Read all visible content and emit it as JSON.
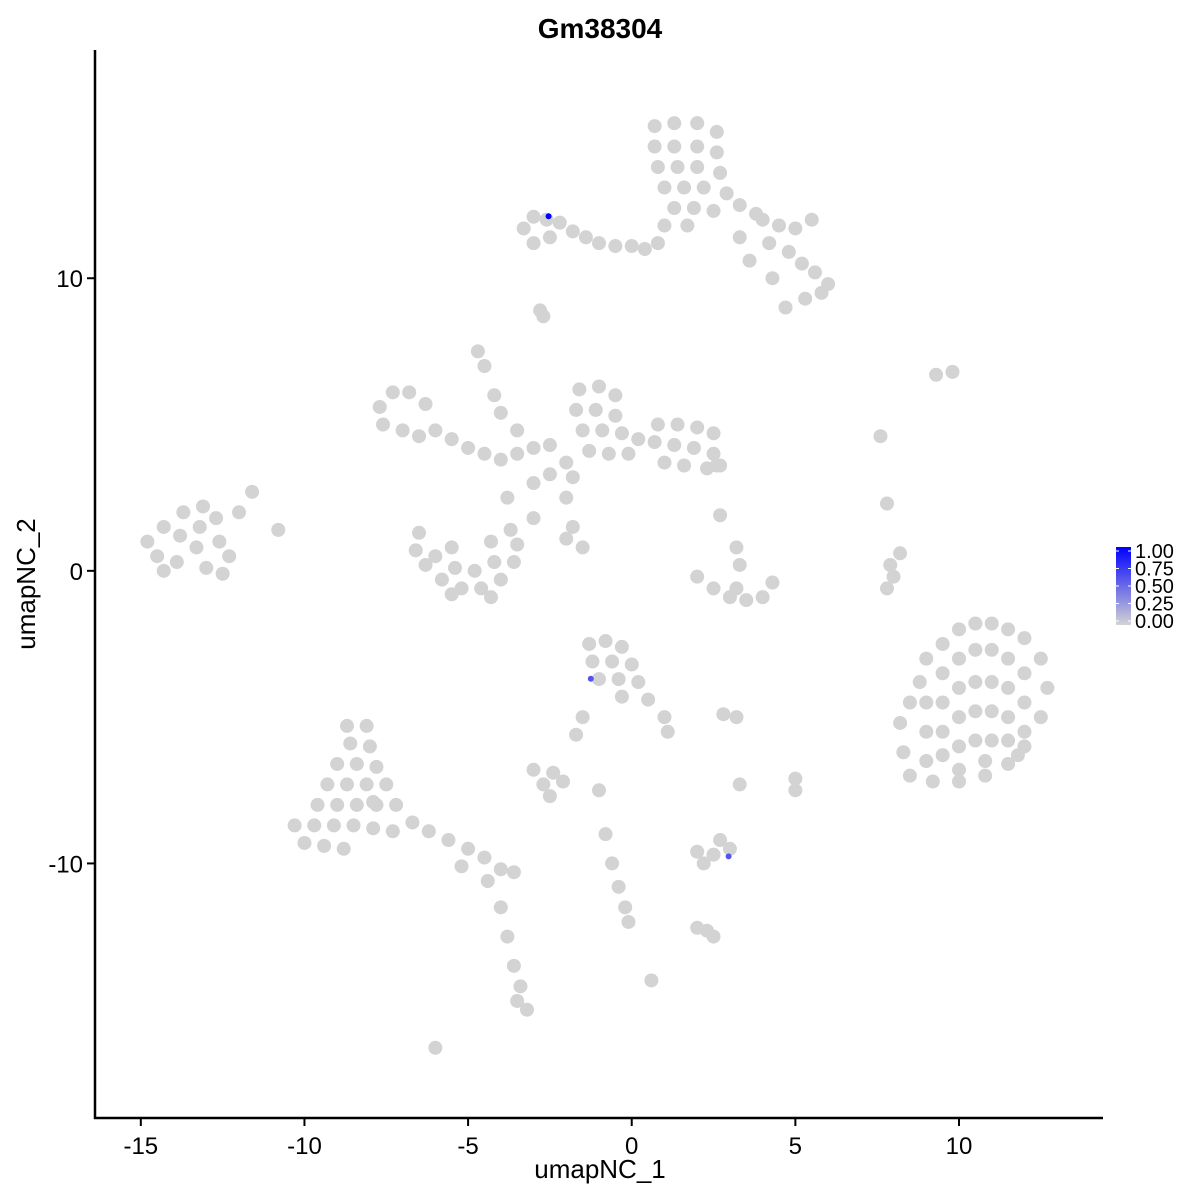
{
  "chart_data": {
    "type": "scatter",
    "title": "Gm38304",
    "xlabel": "umapNC_1",
    "ylabel": "umapNC_2",
    "xlim": [
      -16.4,
      14.4
    ],
    "ylim": [
      -18.7,
      17.8
    ],
    "xticks": [
      -15,
      -10,
      -5,
      0,
      5,
      10
    ],
    "yticks": [
      -10,
      0,
      10
    ],
    "xtick_labels": [
      "-15",
      "-10",
      "-5",
      "0",
      "5",
      "10"
    ],
    "ytick_labels": [
      "-10",
      "0",
      "10"
    ],
    "grid": false,
    "legend": {
      "type": "colorbar",
      "placement": "right",
      "low_color": "#d3d3d3",
      "high_color": "#0000ff",
      "range": [
        0,
        1
      ],
      "labels": [
        "1.00",
        "0.75",
        "0.50",
        "0.25",
        "0.00"
      ]
    },
    "background_points_value": 0,
    "points": [
      [
        9,
        -3
      ],
      [
        9.5,
        -2.5
      ],
      [
        10,
        -2
      ],
      [
        10.5,
        -1.8
      ],
      [
        11,
        -1.8
      ],
      [
        11.5,
        -2
      ],
      [
        12,
        -2.3
      ],
      [
        12.5,
        -3
      ],
      [
        12.7,
        -4
      ],
      [
        12.5,
        -5
      ],
      [
        12,
        -6
      ],
      [
        11.5,
        -6.6
      ],
      [
        10.8,
        -7
      ],
      [
        10,
        -7.2
      ],
      [
        9.2,
        -7.2
      ],
      [
        8.5,
        -7
      ],
      [
        8.3,
        -6.2
      ],
      [
        8.2,
        -5.2
      ],
      [
        8.5,
        -4.5
      ],
      [
        8.8,
        -3.8
      ],
      [
        9.5,
        -3.5
      ],
      [
        10,
        -3
      ],
      [
        10.5,
        -2.7
      ],
      [
        11,
        -2.7
      ],
      [
        11.5,
        -3
      ],
      [
        12,
        -3.5
      ],
      [
        9.5,
        -4.5
      ],
      [
        10,
        -4
      ],
      [
        10.5,
        -3.8
      ],
      [
        11,
        -3.8
      ],
      [
        11.5,
        -4
      ],
      [
        12,
        -4.5
      ],
      [
        9,
        -5.5
      ],
      [
        9.5,
        -5.5
      ],
      [
        10,
        -5
      ],
      [
        10.5,
        -4.8
      ],
      [
        11,
        -4.8
      ],
      [
        11.5,
        -5
      ],
      [
        12,
        -5.5
      ],
      [
        9,
        -6.5
      ],
      [
        9.5,
        -6.3
      ],
      [
        10,
        -6
      ],
      [
        10.5,
        -5.8
      ],
      [
        11,
        -5.8
      ],
      [
        11.5,
        -5.8
      ],
      [
        10,
        -6.8
      ],
      [
        10.8,
        -6.5
      ],
      [
        9,
        -4.5
      ],
      [
        11.8,
        -6.3
      ],
      [
        0.7,
        15.2
      ],
      [
        1.3,
        15.3
      ],
      [
        2,
        15.3
      ],
      [
        2.6,
        15
      ],
      [
        0.7,
        14.5
      ],
      [
        1.3,
        14.5
      ],
      [
        2,
        14.5
      ],
      [
        2.6,
        14.3
      ],
      [
        0.8,
        13.8
      ],
      [
        1.4,
        13.8
      ],
      [
        2,
        13.8
      ],
      [
        2.7,
        13.6
      ],
      [
        1,
        13.1
      ],
      [
        1.6,
        13.1
      ],
      [
        2.2,
        13.1
      ],
      [
        2.9,
        12.9
      ],
      [
        1.3,
        12.4
      ],
      [
        1.9,
        12.4
      ],
      [
        2.5,
        12.3
      ],
      [
        3.3,
        12.5
      ],
      [
        3.8,
        12.2
      ],
      [
        1,
        11.8
      ],
      [
        0.8,
        11.2
      ],
      [
        1.7,
        11.8
      ],
      [
        4,
        12
      ],
      [
        4.5,
        11.8
      ],
      [
        5,
        11.7
      ],
      [
        5.5,
        12
      ],
      [
        4.2,
        11.2
      ],
      [
        4.8,
        10.9
      ],
      [
        5.2,
        10.5
      ],
      [
        5.6,
        10.2
      ],
      [
        6,
        9.8
      ],
      [
        5.8,
        9.5
      ],
      [
        5.3,
        9.3
      ],
      [
        4.7,
        9
      ],
      [
        4.3,
        10
      ],
      [
        3.6,
        10.6
      ],
      [
        3.3,
        11.4
      ],
      [
        -3.3,
        11.7
      ],
      [
        -3,
        12.1
      ],
      [
        -2.6,
        12
      ],
      [
        -2.2,
        11.9
      ],
      [
        -1.8,
        11.6
      ],
      [
        -1.4,
        11.4
      ],
      [
        -1,
        11.2
      ],
      [
        -0.5,
        11.1
      ],
      [
        0,
        11.1
      ],
      [
        0.4,
        11
      ],
      [
        -3,
        11.2
      ],
      [
        -2.5,
        11.4
      ],
      [
        -2.8,
        8.9
      ],
      [
        -2.7,
        8.7
      ],
      [
        -7.7,
        5.6
      ],
      [
        -7.3,
        6.1
      ],
      [
        -6.8,
        6.1
      ],
      [
        -6.3,
        5.7
      ],
      [
        -7.6,
        5
      ],
      [
        -7,
        4.8
      ],
      [
        -6.5,
        4.6
      ],
      [
        -6,
        4.8
      ],
      [
        -5.5,
        4.5
      ],
      [
        -5,
        4.2
      ],
      [
        -4.5,
        4
      ],
      [
        -4,
        3.8
      ],
      [
        -3.5,
        4
      ],
      [
        -3,
        4.2
      ],
      [
        -2.5,
        4.3
      ],
      [
        -1.6,
        6.2
      ],
      [
        -1,
        6.3
      ],
      [
        -0.5,
        6
      ],
      [
        -1.7,
        5.5
      ],
      [
        -1.1,
        5.5
      ],
      [
        -0.5,
        5.3
      ],
      [
        -1.5,
        4.8
      ],
      [
        -0.9,
        4.8
      ],
      [
        -0.3,
        4.7
      ],
      [
        0.2,
        4.5
      ],
      [
        -1.3,
        4.1
      ],
      [
        -0.7,
        4
      ],
      [
        -0.1,
        4
      ],
      [
        -2,
        3.7
      ],
      [
        -2.5,
        3.3
      ],
      [
        -3,
        3
      ],
      [
        -1.8,
        3.2
      ],
      [
        0.8,
        5
      ],
      [
        1.4,
        5
      ],
      [
        2,
        4.9
      ],
      [
        2.5,
        4.7
      ],
      [
        0.7,
        4.4
      ],
      [
        1.3,
        4.3
      ],
      [
        1.9,
        4.2
      ],
      [
        2.5,
        4
      ],
      [
        1,
        3.7
      ],
      [
        1.6,
        3.6
      ],
      [
        2.3,
        3.5
      ],
      [
        2.7,
        3.6
      ],
      [
        -4.7,
        7.5
      ],
      [
        -4.5,
        7
      ],
      [
        -4.2,
        6
      ],
      [
        -4,
        5.4
      ],
      [
        -3.5,
        4.8
      ],
      [
        -2,
        2.5
      ],
      [
        -3,
        1.8
      ],
      [
        -3.8,
        2.5
      ],
      [
        -1.8,
        1.5
      ],
      [
        -1.5,
        0.8
      ],
      [
        -2,
        1.1
      ],
      [
        -6.5,
        1.3
      ],
      [
        -6.6,
        0.7
      ],
      [
        -6.3,
        0.2
      ],
      [
        -5.8,
        -0.3
      ],
      [
        -5.2,
        -0.6
      ],
      [
        -4.6,
        -0.6
      ],
      [
        -4,
        -0.3
      ],
      [
        -3.6,
        0.3
      ],
      [
        -3.5,
        0.9
      ],
      [
        -3.7,
        1.4
      ],
      [
        -6,
        0.5
      ],
      [
        -5.4,
        0.1
      ],
      [
        -4.8,
        0
      ],
      [
        -4.2,
        0.3
      ],
      [
        -5.5,
        -0.8
      ],
      [
        -4.3,
        -0.9
      ],
      [
        -4.3,
        1
      ],
      [
        -5.5,
        0.8
      ],
      [
        -14.8,
        1
      ],
      [
        -14.3,
        1.5
      ],
      [
        -13.7,
        2
      ],
      [
        -13.1,
        2.2
      ],
      [
        -12.7,
        1.8
      ],
      [
        -14.5,
        0.5
      ],
      [
        -13.9,
        0.3
      ],
      [
        -13.3,
        0.8
      ],
      [
        -13.8,
        1.2
      ],
      [
        -13.2,
        1.5
      ],
      [
        -12.6,
        1
      ],
      [
        -12.3,
        0.5
      ],
      [
        -12.5,
        -0.1
      ],
      [
        -13,
        0.1
      ],
      [
        -14.3,
        0
      ],
      [
        -12,
        2
      ],
      [
        -11.6,
        2.7
      ],
      [
        -10.8,
        1.4
      ],
      [
        2,
        -0.2
      ],
      [
        2.5,
        -0.6
      ],
      [
        3,
        -0.9
      ],
      [
        3.5,
        -1
      ],
      [
        4,
        -0.9
      ],
      [
        4.3,
        -0.4
      ],
      [
        3.2,
        -0.6
      ],
      [
        3.2,
        0.8
      ],
      [
        3.3,
        0.2
      ],
      [
        2.7,
        1.9
      ],
      [
        2.6,
        3.6
      ],
      [
        8,
        -0.2
      ],
      [
        7.8,
        -0.6
      ],
      [
        8.2,
        0.6
      ],
      [
        7.9,
        0.2
      ],
      [
        7.8,
        2.3
      ],
      [
        7.6,
        4.6
      ],
      [
        9.3,
        6.7
      ],
      [
        9.8,
        6.8
      ],
      [
        -1.3,
        -2.5
      ],
      [
        -0.8,
        -2.4
      ],
      [
        -0.3,
        -2.6
      ],
      [
        -1.2,
        -3.1
      ],
      [
        -0.6,
        -3.1
      ],
      [
        0,
        -3.2
      ],
      [
        -1,
        -3.7
      ],
      [
        -0.4,
        -3.7
      ],
      [
        0.2,
        -3.8
      ],
      [
        0.5,
        -4.4
      ],
      [
        1,
        -5
      ],
      [
        1.1,
        -5.5
      ],
      [
        -1.5,
        -5
      ],
      [
        -1.7,
        -5.6
      ],
      [
        -0.3,
        -4.3
      ],
      [
        -3,
        -6.8
      ],
      [
        -2.4,
        -6.9
      ],
      [
        -2.7,
        -7.3
      ],
      [
        -2.1,
        -7.2
      ],
      [
        -2.5,
        -7.7
      ],
      [
        2.8,
        -4.9
      ],
      [
        3.2,
        -5
      ],
      [
        -0.8,
        -9
      ],
      [
        -0.6,
        -10
      ],
      [
        -0.4,
        -10.8
      ],
      [
        -0.2,
        -11.5
      ],
      [
        -0.1,
        -12
      ],
      [
        2,
        -9.6
      ],
      [
        2.5,
        -9.7
      ],
      [
        3,
        -9.5
      ],
      [
        2.2,
        -10
      ],
      [
        2.7,
        -9.2
      ],
      [
        2.3,
        -12.3
      ],
      [
        2.5,
        -12.5
      ],
      [
        2,
        -12.2
      ],
      [
        0.6,
        -14
      ],
      [
        5,
        -7.1
      ],
      [
        5,
        -7.5
      ],
      [
        3.3,
        -7.3
      ],
      [
        -1,
        -7.5
      ],
      [
        -6,
        -16.3
      ],
      [
        -8.7,
        -5.3
      ],
      [
        -8.1,
        -5.3
      ],
      [
        -8.6,
        -5.9
      ],
      [
        -8,
        -6
      ],
      [
        -9,
        -6.6
      ],
      [
        -8.4,
        -6.6
      ],
      [
        -7.8,
        -6.7
      ],
      [
        -9.3,
        -7.3
      ],
      [
        -8.7,
        -7.3
      ],
      [
        -8.1,
        -7.3
      ],
      [
        -7.5,
        -7.3
      ],
      [
        -9.6,
        -8
      ],
      [
        -9,
        -8
      ],
      [
        -8.4,
        -8
      ],
      [
        -7.8,
        -8
      ],
      [
        -7.2,
        -8
      ],
      [
        -10.3,
        -8.7
      ],
      [
        -9.7,
        -8.7
      ],
      [
        -9.1,
        -8.7
      ],
      [
        -8.5,
        -8.7
      ],
      [
        -7.9,
        -8.8
      ],
      [
        -7.3,
        -8.9
      ],
      [
        -10,
        -9.3
      ],
      [
        -9.4,
        -9.4
      ],
      [
        -8.8,
        -9.5
      ],
      [
        -6.7,
        -8.6
      ],
      [
        -6.2,
        -8.9
      ],
      [
        -5.6,
        -9.2
      ],
      [
        -5,
        -9.5
      ],
      [
        -4.5,
        -9.8
      ],
      [
        -4,
        -10.2
      ],
      [
        -3.6,
        -10.3
      ],
      [
        -5.2,
        -10.1
      ],
      [
        -4.4,
        -10.6
      ],
      [
        -4,
        -11.5
      ],
      [
        -3.8,
        -12.5
      ],
      [
        -3.6,
        -13.5
      ],
      [
        -3.4,
        -14.2
      ],
      [
        -3.5,
        -14.7
      ],
      [
        -3.2,
        -15
      ],
      [
        -7.9,
        -7.9
      ]
    ],
    "expressing_points": [
      {
        "x": -2.54,
        "y": 12.12,
        "value": 1.0
      },
      {
        "x": -1.25,
        "y": -3.69,
        "value": 0.6
      },
      {
        "x": 2.96,
        "y": -9.76,
        "value": 0.6
      }
    ]
  }
}
